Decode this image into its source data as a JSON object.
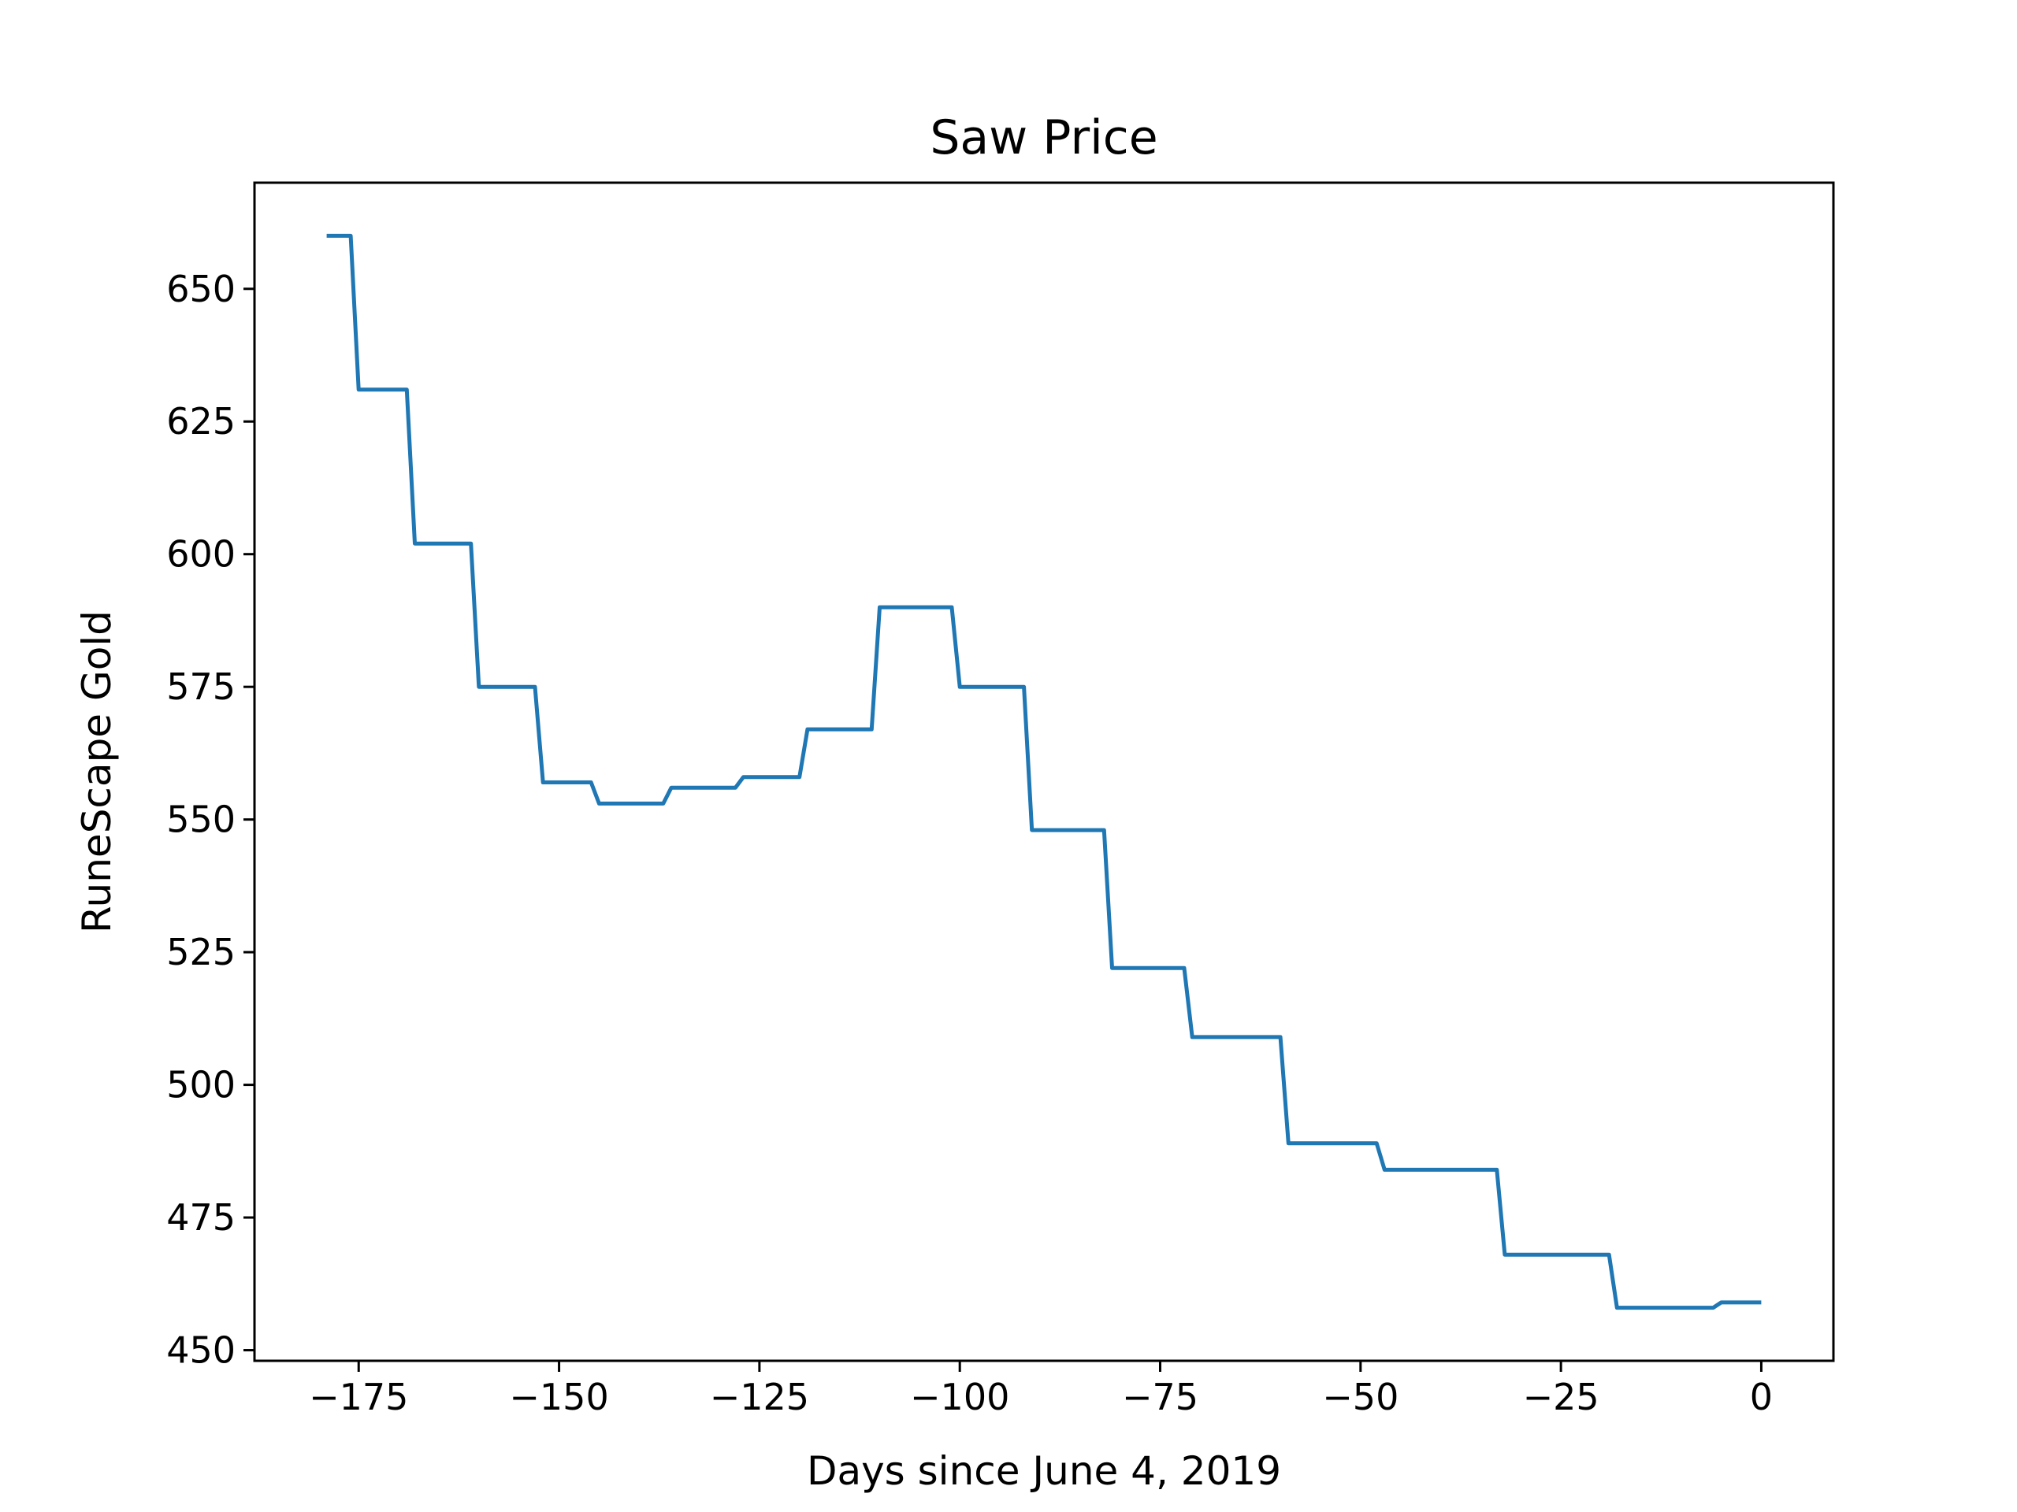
{
  "chart_data": {
    "type": "line",
    "title": "Saw Price",
    "xlabel": "Days since June 4, 2019",
    "ylabel": "RuneScape Gold",
    "xlim": [
      -188,
      9
    ],
    "ylim": [
      448,
      670
    ],
    "xticks": [
      -175,
      -150,
      -125,
      -100,
      -75,
      -50,
      -25,
      0
    ],
    "yticks": [
      450,
      475,
      500,
      525,
      550,
      575,
      600,
      625,
      650
    ],
    "xtick_labels": [
      "−175",
      "−150",
      "−125",
      "−100",
      "−75",
      "−50",
      "−25",
      "0"
    ],
    "ytick_labels": [
      "450",
      "475",
      "500",
      "525",
      "550",
      "575",
      "600",
      "625",
      "650"
    ],
    "grid": false,
    "line_color": "#1f77b4",
    "series": [
      {
        "x": [
          -179,
          -176,
          -175,
          -169,
          -168,
          -161,
          -160,
          -153,
          -152,
          -146,
          -145,
          -137,
          -136,
          -128,
          -127,
          -120,
          -119,
          -111,
          -110,
          -101,
          -100,
          -92,
          -91,
          -82,
          -81,
          -72,
          -71,
          -60,
          -59,
          -48,
          -47,
          -33,
          -32,
          -19,
          -18,
          -6,
          -5,
          0
        ],
        "y": [
          660,
          660,
          631,
          631,
          602,
          602,
          575,
          575,
          557,
          557,
          553,
          553,
          556,
          556,
          558,
          558,
          567,
          567,
          590,
          590,
          575,
          575,
          548,
          548,
          522,
          522,
          509,
          509,
          489,
          489,
          484,
          484,
          468,
          468,
          458,
          458,
          459,
          459
        ]
      }
    ]
  }
}
